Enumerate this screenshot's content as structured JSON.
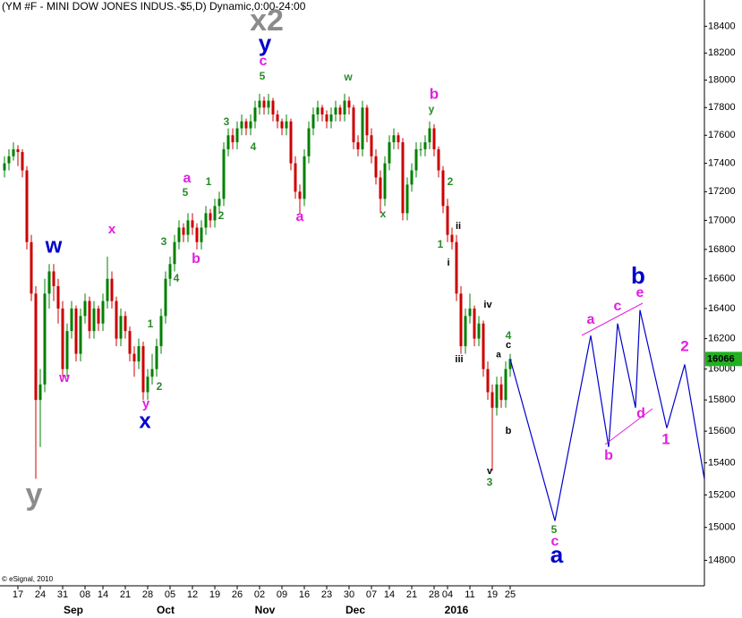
{
  "chart_data": {
    "type": "candlestick",
    "title": "(YM #F - MINI DOW JONES INDUS.-$5,D) Dynamic,0:00-24:00",
    "footnote": "© eSignal, 2010",
    "log_scale": true,
    "grid": false,
    "up_color": "#008000",
    "down_color": "#cc0000",
    "categories": [
      null,
      null,
      null,
      "17",
      null,
      null,
      null,
      null,
      "24",
      null,
      null,
      null,
      null,
      "31",
      null,
      null,
      null,
      null,
      "08",
      null,
      null,
      null,
      "14",
      null,
      null,
      null,
      null,
      "21",
      null,
      null,
      null,
      null,
      "28",
      null,
      null,
      null,
      null,
      "05",
      null,
      null,
      null,
      null,
      "12",
      null,
      null,
      null,
      null,
      "19",
      null,
      null,
      null,
      null,
      "26",
      null,
      null,
      null,
      null,
      "02",
      null,
      null,
      null,
      null,
      "09",
      null,
      null,
      null,
      null,
      "16",
      null,
      null,
      null,
      null,
      "23",
      null,
      null,
      null,
      null,
      "30",
      null,
      null,
      null,
      null,
      "07",
      null,
      null,
      null,
      "14",
      null,
      null,
      null,
      null,
      "21",
      null,
      null,
      null,
      null,
      "28",
      null,
      null,
      "04",
      null,
      null,
      null,
      null,
      "11",
      null,
      null,
      null,
      null,
      "19",
      null,
      null,
      null,
      "25"
    ],
    "months": [
      "Sep",
      "Oct",
      "Nov",
      "Dec",
      "2016"
    ],
    "candles": [
      [
        17350,
        17450,
        17300,
        17400
      ],
      [
        17400,
        17500,
        17350,
        17450
      ],
      [
        17450,
        17550,
        17420,
        17500
      ],
      [
        17500,
        17530,
        17380,
        17480
      ],
      [
        17480,
        17500,
        17300,
        17350
      ],
      [
        17350,
        17380,
        16800,
        16850
      ],
      [
        16850,
        16900,
        16450,
        16500
      ],
      [
        16500,
        16550,
        15300,
        15800
      ],
      [
        15800,
        16000,
        15500,
        15900
      ],
      [
        15900,
        16600,
        15850,
        16500
      ],
      [
        16500,
        16700,
        16400,
        16650
      ],
      [
        16650,
        16700,
        16450,
        16550
      ],
      [
        16550,
        16600,
        16300,
        16400
      ],
      [
        16400,
        16450,
        15950,
        16000
      ],
      [
        16000,
        16300,
        15950,
        16250
      ],
      [
        16250,
        16450,
        16200,
        16400
      ],
      [
        16400,
        16420,
        16050,
        16100
      ],
      [
        16100,
        16400,
        16050,
        16350
      ],
      [
        16350,
        16500,
        16300,
        16450
      ],
      [
        16450,
        16480,
        16200,
        16250
      ],
      [
        16250,
        16450,
        16200,
        16400
      ],
      [
        16400,
        16420,
        16250,
        16300
      ],
      [
        16300,
        16500,
        16250,
        16450
      ],
      [
        16450,
        16750,
        16400,
        16600
      ],
      [
        16600,
        16650,
        16400,
        16450
      ],
      [
        16450,
        16480,
        16150,
        16200
      ],
      [
        16200,
        16400,
        16150,
        16350
      ],
      [
        16350,
        16380,
        16200,
        16250
      ],
      [
        16250,
        16280,
        16050,
        16100
      ],
      [
        16100,
        16150,
        15950,
        16050
      ],
      [
        16050,
        16200,
        16000,
        16150
      ],
      [
        16150,
        16180,
        15800,
        15850
      ],
      [
        15850,
        16000,
        15800,
        15950
      ],
      [
        15950,
        16100,
        15900,
        16000
      ],
      [
        16000,
        16200,
        15950,
        16150
      ],
      [
        16150,
        16400,
        16100,
        16350
      ],
      [
        16350,
        16650,
        16300,
        16600
      ],
      [
        16600,
        16750,
        16550,
        16700
      ],
      [
        16700,
        16900,
        16650,
        16850
      ],
      [
        16850,
        17000,
        16800,
        16950
      ],
      [
        16950,
        16980,
        16850,
        16900
      ],
      [
        16900,
        17050,
        16850,
        17000
      ],
      [
        17000,
        17050,
        16900,
        16950
      ],
      [
        16950,
        16980,
        16800,
        16850
      ],
      [
        16850,
        17000,
        16800,
        16950
      ],
      [
        16950,
        17100,
        16900,
        17050
      ],
      [
        17050,
        17080,
        16950,
        17000
      ],
      [
        17000,
        17150,
        16950,
        17100
      ],
      [
        17100,
        17200,
        17050,
        17150
      ],
      [
        17150,
        17550,
        17100,
        17500
      ],
      [
        17500,
        17650,
        17450,
        17600
      ],
      [
        17600,
        17650,
        17500,
        17550
      ],
      [
        17550,
        17700,
        17500,
        17650
      ],
      [
        17650,
        17750,
        17600,
        17700
      ],
      [
        17700,
        17720,
        17600,
        17650
      ],
      [
        17650,
        17750,
        17600,
        17700
      ],
      [
        17700,
        17850,
        17650,
        17800
      ],
      [
        17800,
        17900,
        17750,
        17850
      ],
      [
        17850,
        17880,
        17750,
        17800
      ],
      [
        17800,
        17900,
        17750,
        17850
      ],
      [
        17850,
        17870,
        17700,
        17750
      ],
      [
        17750,
        17780,
        17650,
        17700
      ],
      [
        17700,
        17720,
        17600,
        17650
      ],
      [
        17650,
        17750,
        17600,
        17700
      ],
      [
        17700,
        17720,
        17350,
        17400
      ],
      [
        17400,
        17450,
        17150,
        17200
      ],
      [
        17200,
        17250,
        17050,
        17150
      ],
      [
        17150,
        17500,
        17100,
        17450
      ],
      [
        17450,
        17700,
        17400,
        17650
      ],
      [
        17650,
        17800,
        17600,
        17750
      ],
      [
        17750,
        17850,
        17700,
        17800
      ],
      [
        17800,
        17820,
        17700,
        17750
      ],
      [
        17750,
        17780,
        17650,
        17700
      ],
      [
        17700,
        17800,
        17650,
        17750
      ],
      [
        17750,
        17850,
        17700,
        17800
      ],
      [
        17800,
        17820,
        17700,
        17750
      ],
      [
        17750,
        17900,
        17700,
        17850
      ],
      [
        17850,
        17880,
        17750,
        17800
      ],
      [
        17800,
        17820,
        17500,
        17550
      ],
      [
        17550,
        17600,
        17450,
        17500
      ],
      [
        17500,
        17850,
        17450,
        17800
      ],
      [
        17800,
        17820,
        17550,
        17600
      ],
      [
        17600,
        17650,
        17400,
        17450
      ],
      [
        17450,
        17500,
        17250,
        17300
      ],
      [
        17300,
        17350,
        17050,
        17150
      ],
      [
        17150,
        17450,
        17100,
        17400
      ],
      [
        17400,
        17600,
        17350,
        17550
      ],
      [
        17550,
        17650,
        17500,
        17600
      ],
      [
        17600,
        17620,
        17500,
        17550
      ],
      [
        17550,
        17580,
        17000,
        17050
      ],
      [
        17050,
        17300,
        17000,
        17250
      ],
      [
        17250,
        17400,
        17200,
        17350
      ],
      [
        17350,
        17550,
        17300,
        17500
      ],
      [
        17500,
        17550,
        17450,
        17500
      ],
      [
        17500,
        17600,
        17450,
        17550
      ],
      [
        17550,
        17700,
        17500,
        17650
      ],
      [
        17650,
        17680,
        17450,
        17500
      ],
      [
        17500,
        17520,
        17300,
        17350
      ],
      [
        17350,
        17380,
        17050,
        17100
      ],
      [
        17100,
        17150,
        16850,
        16900
      ],
      [
        16900,
        16950,
        16800,
        16850
      ],
      [
        16850,
        16900,
        16450,
        16500
      ],
      [
        16500,
        16550,
        16100,
        16150
      ],
      [
        16150,
        16400,
        16100,
        16350
      ],
      [
        16350,
        16500,
        16300,
        16400
      ],
      [
        16400,
        16420,
        16150,
        16200
      ],
      [
        16200,
        16350,
        16150,
        16300
      ],
      [
        16300,
        16320,
        15950,
        16000
      ],
      [
        16000,
        16050,
        15800,
        15850
      ],
      [
        15850,
        15900,
        15350,
        15750
      ],
      [
        15750,
        15950,
        15700,
        15900
      ],
      [
        15900,
        15950,
        15750,
        15800
      ],
      [
        15800,
        16050,
        15750,
        16000
      ],
      [
        16000,
        16100,
        15950,
        16066
      ]
    ],
    "projection": {
      "color": "#0000cc",
      "x": [
        113,
        123,
        131,
        135,
        137,
        141,
        142,
        148,
        152,
        157
      ],
      "values": [
        16066,
        15040,
        16220,
        15500,
        16300,
        15750,
        16390,
        15620,
        16030,
        15200
      ]
    },
    "ylim": [
      14647,
      18598
    ],
    "yticks": [
      14800,
      15000,
      15200,
      15400,
      15600,
      15800,
      16000,
      16200,
      16400,
      16600,
      16800,
      17000,
      17200,
      17400,
      17600,
      17800,
      18000,
      18200,
      18400
    ],
    "last_price_color": "#22b022",
    "annotations": [
      {
        "text": "y",
        "color": "#8c8c8c"
      },
      {
        "text": "w",
        "color": "#0000cc"
      },
      {
        "text": "w",
        "color": "#e020e0"
      },
      {
        "text": "x",
        "color": "#e020e0"
      },
      {
        "text": "y",
        "color": "#e020e0"
      },
      {
        "text": "x",
        "color": "#0000cc"
      },
      {
        "text": "1",
        "color": "#2a8a2a"
      },
      {
        "text": "2",
        "color": "#2a8a2a"
      },
      {
        "text": "3",
        "color": "#2a8a2a"
      },
      {
        "text": "4",
        "color": "#2a8a2a"
      },
      {
        "text": "5",
        "color": "#2a8a2a"
      },
      {
        "text": "a",
        "color": "#e020e0"
      },
      {
        "text": "b",
        "color": "#e020e0"
      },
      {
        "text": "1",
        "color": "#2a8a2a"
      },
      {
        "text": "2",
        "color": "#2a8a2a"
      },
      {
        "text": "3",
        "color": "#2a8a2a"
      },
      {
        "text": "4",
        "color": "#2a8a2a"
      },
      {
        "text": "5",
        "color": "#2a8a2a"
      },
      {
        "text": "c",
        "color": "#e020e0"
      },
      {
        "text": "y",
        "color": "#0000cc"
      },
      {
        "text": "x2",
        "color": "#8c8c8c"
      },
      {
        "text": "a",
        "color": "#e020e0"
      },
      {
        "text": "w",
        "color": "#2a8a2a"
      },
      {
        "text": "x",
        "color": "#2a8a2a"
      },
      {
        "text": "b",
        "color": "#e020e0"
      },
      {
        "text": "y",
        "color": "#2a8a2a"
      },
      {
        "text": "2",
        "color": "#2a8a2a"
      },
      {
        "text": "1",
        "color": "#2a8a2a"
      },
      {
        "text": "ii",
        "color": "#000000"
      },
      {
        "text": "i",
        "color": "#000000"
      },
      {
        "text": "iv",
        "color": "#000000"
      },
      {
        "text": "iii",
        "color": "#000000"
      },
      {
        "text": "v",
        "color": "#000000"
      },
      {
        "text": "3",
        "color": "#2a8a2a"
      },
      {
        "text": "a",
        "color": "#000000"
      },
      {
        "text": "c",
        "color": "#000000"
      },
      {
        "text": "4",
        "color": "#2a8a2a"
      },
      {
        "text": "b",
        "color": "#000000"
      },
      {
        "text": "5",
        "color": "#2a8a2a"
      },
      {
        "text": "c",
        "color": "#e020e0"
      },
      {
        "text": "a",
        "color": "#0000cc"
      },
      {
        "text": "a",
        "color": "#e020e0"
      },
      {
        "text": "c",
        "color": "#e020e0"
      },
      {
        "text": "e",
        "color": "#e020e0"
      },
      {
        "text": "b",
        "color": "#0000cc"
      },
      {
        "text": "b",
        "color": "#e020e0"
      },
      {
        "text": "d",
        "color": "#e020e0"
      },
      {
        "text": "1",
        "color": "#e020e0"
      },
      {
        "text": "2",
        "color": "#e020e0"
      }
    ]
  }
}
